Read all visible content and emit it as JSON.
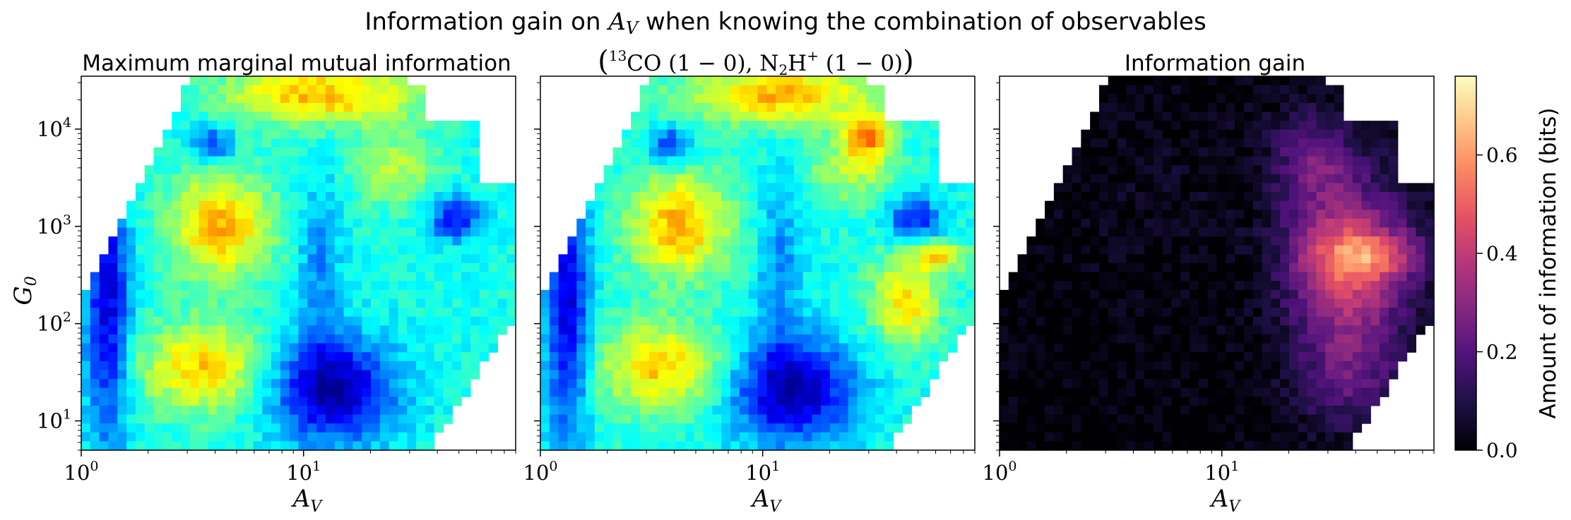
{
  "figure": {
    "suptitle": "Information gain on A_V when knowing the combination of observables",
    "suptitle_parts": [
      "Information gain on ",
      "A",
      "V",
      " when knowing the combination of observables"
    ]
  },
  "chart_data": [
    {
      "type": "heatmap",
      "title": "Maximum marginal mutual information",
      "xlabel": "A_V",
      "ylabel": "G_0",
      "xscale": "log",
      "yscale": "log",
      "xlim": [
        1,
        90
      ],
      "ylim": [
        5,
        35000
      ],
      "x_ticks": [
        {
          "value": 1,
          "base": "10",
          "exp": "0"
        },
        {
          "value": 10,
          "base": "10",
          "exp": "1"
        }
      ],
      "y_ticks": [
        {
          "value": 10,
          "base": "10",
          "exp": "1"
        },
        {
          "value": 100,
          "base": "10",
          "exp": "2"
        },
        {
          "value": 1000,
          "base": "10",
          "exp": "3"
        },
        {
          "value": 10000,
          "base": "10",
          "exp": "4"
        }
      ],
      "colormap": "jet",
      "value_range": [
        0,
        1
      ],
      "grid": false
    },
    {
      "type": "heatmap",
      "title": "(13CO (1-0), N2H+ (1-0))",
      "title_parts": {
        "co_sup": "13",
        "co": "CO (1 − 0), N",
        "n_sub": "2",
        "h": "H",
        "h_sup": "+",
        "tail": " (1 − 0)"
      },
      "xlabel": "A_V",
      "xscale": "log",
      "yscale": "log",
      "xlim": [
        1,
        90
      ],
      "ylim": [
        5,
        35000
      ],
      "x_ticks": [
        {
          "value": 1,
          "base": "10",
          "exp": "0"
        },
        {
          "value": 10,
          "base": "10",
          "exp": "1"
        }
      ],
      "colormap": "jet",
      "value_range": [
        0,
        1
      ],
      "grid": false
    },
    {
      "type": "heatmap",
      "title": "Information gain",
      "xlabel": "A_V",
      "xscale": "log",
      "yscale": "log",
      "xlim": [
        1,
        90
      ],
      "ylim": [
        5,
        35000
      ],
      "x_ticks": [
        {
          "value": 1,
          "base": "10",
          "exp": "0"
        },
        {
          "value": 10,
          "base": "10",
          "exp": "1"
        }
      ],
      "colormap": "magma",
      "value_range": [
        0,
        0.76
      ],
      "grid": false,
      "colorbar": {
        "label": "Amount of information (bits)",
        "ticks": [
          0.0,
          0.2,
          0.4,
          0.6
        ],
        "tick_labels": [
          "0.0",
          "0.2",
          "0.4",
          "0.6"
        ],
        "range": [
          0,
          0.76
        ]
      }
    }
  ],
  "axis_symbols": {
    "av_main": "A",
    "av_sub": "V",
    "g0_main": "G",
    "g0_sub": "0"
  }
}
